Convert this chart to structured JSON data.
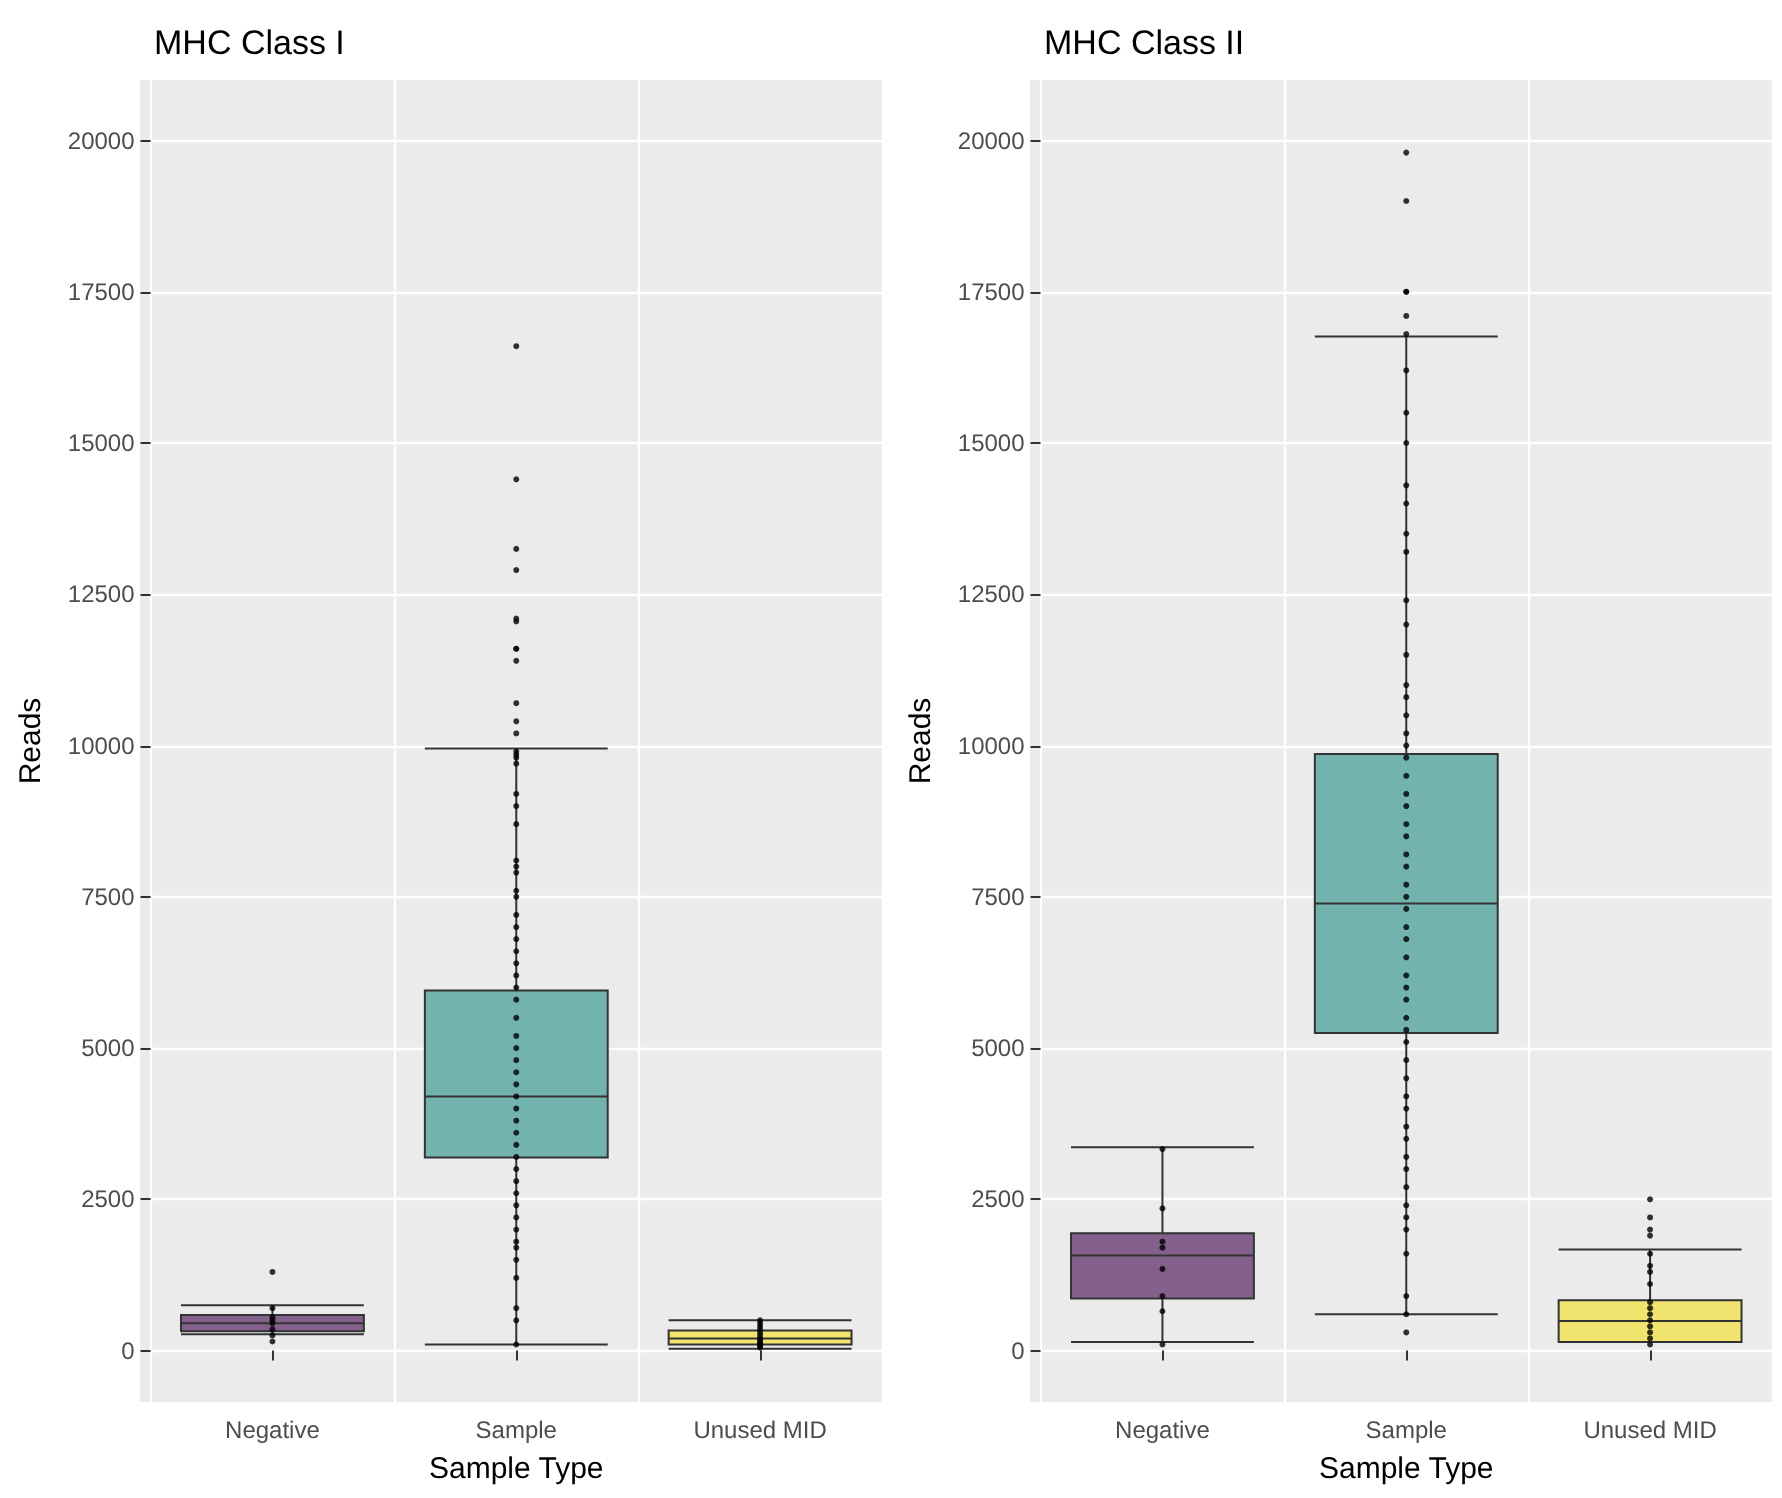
{
  "chart_data": [
    {
      "type": "box",
      "title": "MHC Class I",
      "xlabel": "Sample Type",
      "ylabel": "Reads",
      "categories": [
        "Negative",
        "Sample",
        "Unused MID"
      ],
      "colors": [
        "#84608c",
        "#72b3ae",
        "#f0e46e"
      ],
      "boxes": [
        {
          "low": 270,
          "q1": 320,
          "median": 450,
          "q3": 590,
          "high": 750
        },
        {
          "low": 100,
          "q1": 3190,
          "median": 4200,
          "q3": 5950,
          "high": 9950
        },
        {
          "low": 30,
          "q1": 100,
          "median": 200,
          "q3": 330,
          "high": 500
        }
      ],
      "series": [
        {
          "type": "scatter",
          "color": "#000000",
          "x": [
            "Negative",
            "Negative",
            "Negative",
            "Negative",
            "Negative",
            "Negative",
            "Negative",
            "Negative",
            "Sample",
            "Sample",
            "Sample",
            "Sample",
            "Sample",
            "Sample",
            "Sample",
            "Sample",
            "Sample",
            "Sample",
            "Sample",
            "Sample",
            "Sample",
            "Sample",
            "Sample",
            "Sample",
            "Sample",
            "Sample",
            "Sample",
            "Sample",
            "Sample",
            "Sample",
            "Sample",
            "Sample",
            "Sample",
            "Sample",
            "Sample",
            "Sample",
            "Sample",
            "Sample",
            "Sample",
            "Sample",
            "Sample",
            "Sample",
            "Sample",
            "Sample",
            "Sample",
            "Sample",
            "Sample",
            "Sample",
            "Sample",
            "Sample",
            "Sample",
            "Sample",
            "Sample",
            "Sample",
            "Sample",
            "Sample",
            "Sample",
            "Sample",
            "Sample",
            "Sample",
            "Sample",
            "Sample",
            "Sample",
            "Sample",
            "Sample",
            "Unused MID",
            "Unused MID",
            "Unused MID",
            "Unused MID",
            "Unused MID",
            "Unused MID",
            "Unused MID",
            "Unused MID",
            "Unused MID",
            "Unused MID",
            "Unused MID",
            "Unused MID",
            "Unused MID"
          ],
          "values": [
            1300,
            700,
            550,
            500,
            450,
            350,
            250,
            150,
            16600,
            14400,
            13250,
            12900,
            12100,
            12050,
            11600,
            11400,
            11600,
            10700,
            10400,
            10200,
            9900,
            9850,
            9800,
            9700,
            9200,
            9000,
            8700,
            8100,
            8000,
            7900,
            7600,
            7500,
            7200,
            7000,
            6800,
            6600,
            6400,
            6200,
            6000,
            5800,
            5500,
            5200,
            5000,
            4800,
            4600,
            4400,
            4200,
            4000,
            3800,
            3600,
            3400,
            3200,
            3000,
            2800,
            2600,
            2400,
            2200,
            2000,
            1800,
            1700,
            1500,
            1200,
            700,
            500,
            100,
            500,
            450,
            400,
            350,
            300,
            250,
            200,
            180,
            150,
            120,
            100,
            80,
            50
          ]
        }
      ],
      "marker": "circle",
      "ylim": [
        -850,
        21000
      ],
      "yticks": [
        0,
        2500,
        5000,
        7500,
        10000,
        12500,
        15000,
        17500,
        20000
      ],
      "grid": true
    },
    {
      "type": "box",
      "title": "MHC Class II",
      "xlabel": "Sample Type",
      "ylabel": "Reads",
      "categories": [
        "Negative",
        "Sample",
        "Unused MID"
      ],
      "colors": [
        "#84608c",
        "#72b3ae",
        "#f0e46e"
      ],
      "boxes": [
        {
          "low": 140,
          "q1": 860,
          "median": 1570,
          "q3": 1940,
          "high": 3360
        },
        {
          "low": 600,
          "q1": 5250,
          "median": 7390,
          "q3": 9860,
          "high": 16760
        },
        {
          "low": 140,
          "q1": 140,
          "median": 490,
          "q3": 830,
          "high": 1670
        }
      ],
      "series": [
        {
          "type": "scatter",
          "color": "#000000",
          "x": [
            "Negative",
            "Negative",
            "Negative",
            "Negative",
            "Negative",
            "Negative",
            "Negative",
            "Negative",
            "Sample",
            "Sample",
            "Sample",
            "Sample",
            "Sample",
            "Sample",
            "Sample",
            "Sample",
            "Sample",
            "Sample",
            "Sample",
            "Sample",
            "Sample",
            "Sample",
            "Sample",
            "Sample",
            "Sample",
            "Sample",
            "Sample",
            "Sample",
            "Sample",
            "Sample",
            "Sample",
            "Sample",
            "Sample",
            "Sample",
            "Sample",
            "Sample",
            "Sample",
            "Sample",
            "Sample",
            "Sample",
            "Sample",
            "Sample",
            "Sample",
            "Sample",
            "Sample",
            "Sample",
            "Sample",
            "Sample",
            "Sample",
            "Sample",
            "Sample",
            "Sample",
            "Sample",
            "Sample",
            "Sample",
            "Sample",
            "Sample",
            "Sample",
            "Sample",
            "Sample",
            "Sample",
            "Sample",
            "Sample",
            "Sample",
            "Sample",
            "Unused MID",
            "Unused MID",
            "Unused MID",
            "Unused MID",
            "Unused MID",
            "Unused MID",
            "Unused MID",
            "Unused MID",
            "Unused MID",
            "Unused MID",
            "Unused MID",
            "Unused MID",
            "Unused MID",
            "Unused MID",
            "Unused MID",
            "Unused MID"
          ],
          "values": [
            3330,
            2350,
            1800,
            1700,
            1350,
            900,
            650,
            100,
            19800,
            19000,
            17500,
            17500,
            17100,
            16800,
            16200,
            15500,
            15000,
            14300,
            14000,
            13500,
            13200,
            12400,
            12000,
            11500,
            11000,
            10800,
            10500,
            10200,
            10000,
            9800,
            9500,
            9200,
            9000,
            8700,
            8500,
            8200,
            8000,
            7700,
            7500,
            7300,
            7000,
            6800,
            6500,
            6200,
            6000,
            5800,
            5500,
            5300,
            5100,
            4800,
            4500,
            4200,
            4000,
            3700,
            3500,
            3200,
            3000,
            2700,
            2400,
            2200,
            2000,
            1600,
            900,
            600,
            300,
            2500,
            2200,
            2000,
            1900,
            1600,
            1400,
            1300,
            1100,
            800,
            700,
            600,
            500,
            400,
            300,
            200,
            100
          ]
        }
      ],
      "marker": "circle",
      "ylim": [
        -850,
        21000
      ],
      "yticks": [
        0,
        2500,
        5000,
        7500,
        10000,
        12500,
        15000,
        17500,
        20000
      ],
      "grid": true
    }
  ]
}
